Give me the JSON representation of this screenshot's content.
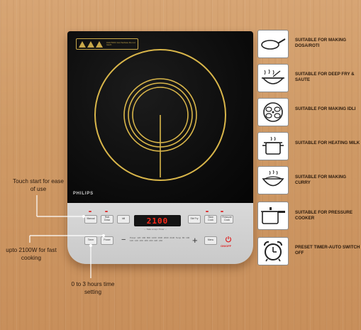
{
  "cooktop": {
    "brand": "PHILIPS",
    "warning_text": "CAUTION: Hot Surface Do not touch",
    "display_value": "2100",
    "timer_label": "← Take a nap / Timer →",
    "buttons": {
      "manual": "Manual",
      "roti_dosa": "Roti Dosa",
      "idli": "Idli",
      "stir_fry": "Stir Fry",
      "slow_cook": "Slow Cook",
      "pressure_cook": "Pressure Cook",
      "timer": "Timer",
      "power": "Power",
      "minus": "−",
      "plus": "+",
      "menu": "Menu",
      "on_off": "ON/OFF"
    },
    "power_scale": "Power 120 400 800 1200 1600 2000 2100 Temp 80 100 120 140 160 180 200 220 240"
  },
  "callouts": [
    {
      "text": "Touch start for ease of use"
    },
    {
      "text": "upto 2100W for fast cooking"
    },
    {
      "text": "0 to 3 hours time setting"
    }
  ],
  "features": [
    {
      "icon": "dosa-pan-icon",
      "label": "SUITABLE FOR MAKING DOSA/ROTI"
    },
    {
      "icon": "kadai-icon",
      "label": "SUITABLE FOR DEEP FRY & SAUTE"
    },
    {
      "icon": "idli-stand-icon",
      "label": "SUITABLE FOR MAKING IDLI"
    },
    {
      "icon": "milk-pot-icon",
      "label": "SUITABLE FOR HEATING MILK"
    },
    {
      "icon": "curry-bowl-icon",
      "label": "SUITABLE FOR MAKING CURRY"
    },
    {
      "icon": "pressure-cooker-icon",
      "label": "SUITABLE FOR PRESSURE COOKER"
    },
    {
      "icon": "alarm-clock-icon",
      "label": "PRESET TIMER-AUTO SWITCH OFF"
    }
  ],
  "colors": {
    "coil": "#d9b64a",
    "display": "#ff2a1a",
    "background_wood": "#cf9a66"
  }
}
